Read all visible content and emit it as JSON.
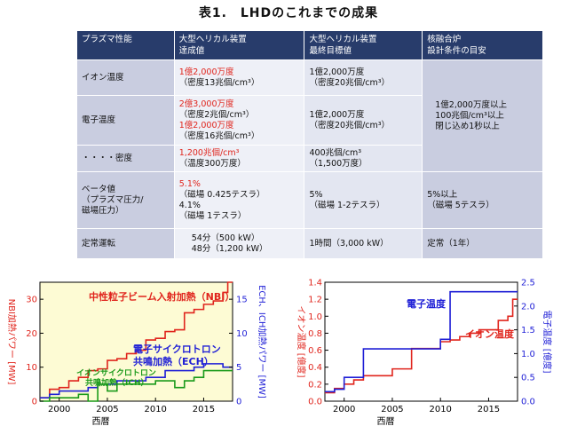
{
  "title": "表1.　LHDのこれまでの成果",
  "table": {
    "headers": [
      [
        "プラズマ性能"
      ],
      [
        "大型ヘリカル装置",
        "達成値"
      ],
      [
        "大型ヘリカル装置",
        "最終目標値"
      ],
      [
        "核融合炉",
        "設計条件の目安"
      ]
    ],
    "rows": [
      {
        "label": [
          "イオン温度"
        ],
        "achieved": [
          {
            "t": "1億2,000万度",
            "red": true
          },
          {
            "t": "（密度13兆個/cm³）",
            "red": false
          }
        ],
        "target": [
          {
            "t": "1億2,000万度"
          },
          {
            "t": "（密度20兆個/cm³）"
          }
        ]
      },
      {
        "label": [
          "電子温度"
        ],
        "achieved": [
          {
            "t": "2億3,000万度",
            "red": true
          },
          {
            "t": "（密度2兆個/cm³）",
            "red": false
          },
          {
            "t": "1億2,000万度",
            "red": true
          },
          {
            "t": "（密度16兆個/cm³）",
            "red": false
          }
        ],
        "target": [
          {
            "t": "1億2,000万度"
          },
          {
            "t": "（密度20兆個/cm³）"
          }
        ]
      },
      {
        "label": [
          "・・・・密度"
        ],
        "achieved": [
          {
            "t": "1,200兆個/cm³",
            "red": true
          },
          {
            "t": "（温度300万度）",
            "red": false
          }
        ],
        "target": [
          {
            "t": "400兆個/cm³"
          },
          {
            "t": "（1,500万度）"
          }
        ]
      },
      {
        "label": [
          "ベータ値",
          "（プラズマ圧力/",
          "磁場圧力）"
        ],
        "achieved": [
          {
            "t": "5.1%",
            "red": true
          },
          {
            "t": "（磁場 0.425テスラ）",
            "red": false
          },
          {
            "t": "4.1%",
            "red": false
          },
          {
            "t": "（磁場 1テスラ）",
            "red": false
          }
        ],
        "target": [
          {
            "t": "5%"
          },
          {
            "t": "（磁場 1-2テスラ）"
          }
        ],
        "reactor": [
          "5%以上",
          "（磁場 5テスラ）"
        ]
      },
      {
        "label": [
          "定常運転"
        ],
        "achieved": [
          {
            "t": "54分（500 kW）",
            "red": false
          },
          {
            "t": "48分（1,200 kW）",
            "red": false
          }
        ],
        "target": [
          {
            "t": "1時間（3,000 kW）"
          }
        ],
        "reactor": [
          "定常（1年）"
        ]
      }
    ],
    "reactor_merged": [
      "1億2,000万度以上",
      "100兆個/cm³以上",
      "閉じ込め1秒以上"
    ]
  },
  "colors": {
    "header_bg": "#283c6b",
    "red": "#e0251d",
    "blue": "#1f1fd6",
    "green": "#1a9a1a",
    "chart_bg": "#fdfbd4"
  },
  "chart_data": [
    {
      "type": "line",
      "xlabel": "西暦",
      "ylabel": "NBI加熱パワー [MW]",
      "ylabel_right": "ECH、ICH加熱パワー [MW]",
      "xlim": [
        1998,
        2018
      ],
      "ylim": [
        0,
        35
      ],
      "ylim_right": [
        0,
        17.5
      ],
      "x_ticks": [
        2000,
        2005,
        2010,
        2015
      ],
      "y_ticks": [
        0,
        10,
        20,
        30
      ],
      "y_ticks_right": [
        0,
        5,
        10,
        15
      ],
      "grid": false,
      "annotations": [
        {
          "text": "中性粒子ビーム入射加熱（NBI）",
          "color": "red"
        },
        {
          "text": "電子サイクロトロン",
          "color": "blue"
        },
        {
          "text": "共鳴加熱（ECH）",
          "color": "blue"
        },
        {
          "text": "イオンサイクロトロン",
          "color": "green"
        },
        {
          "text": "共鳴加熱（ICH）",
          "color": "green"
        }
      ],
      "series": [
        {
          "axis": "left",
          "color": "red",
          "step": true,
          "x": [
            1998,
            1999,
            2000,
            2001,
            2002,
            2003,
            2004,
            2005,
            2006,
            2007,
            2008,
            2009,
            2010,
            2011,
            2012,
            2013,
            2014,
            2015,
            2016,
            2017,
            2017.5,
            2018
          ],
          "values": [
            1,
            3.5,
            4,
            6,
            7,
            9,
            9.5,
            12,
            12.5,
            14,
            15,
            18,
            18.5,
            20.5,
            21,
            26,
            27,
            28.5,
            29.5,
            32,
            35,
            35
          ]
        },
        {
          "axis": "right",
          "color": "blue",
          "step": true,
          "x": [
            1998,
            1999,
            2000,
            2001,
            2002,
            2003,
            2004,
            2006,
            2007,
            2009,
            2010,
            2011,
            2013,
            2014,
            2015,
            2016,
            2017,
            2018
          ],
          "values": [
            0.5,
            1,
            1.5,
            1.5,
            1.5,
            2,
            2.5,
            3,
            3,
            3.5,
            3.5,
            4.5,
            4.5,
            5,
            5.5,
            5.5,
            5,
            5
          ]
        },
        {
          "axis": "right",
          "color": "green",
          "step": true,
          "x": [
            1998,
            1999,
            2000,
            2001,
            2002,
            2003,
            2004,
            2005,
            2006,
            2008,
            2009,
            2010,
            2012,
            2013,
            2014,
            2015,
            2016,
            2017,
            2018
          ],
          "values": [
            0,
            0.5,
            0.5,
            0.5,
            1,
            0,
            2.5,
            1.5,
            2.5,
            2.5,
            2.5,
            3,
            2,
            3,
            3.5,
            4.5,
            4.5,
            4.5,
            4.5
          ]
        }
      ]
    },
    {
      "type": "line",
      "xlabel": "西暦",
      "ylabel": "イオン温度 [億度]",
      "ylabel_right": "電子温度 [億度]",
      "xlim": [
        1998,
        2018
      ],
      "ylim": [
        0,
        1.4
      ],
      "ylim_right": [
        0,
        2.5
      ],
      "x_ticks": [
        2000,
        2005,
        2010,
        2015
      ],
      "y_ticks": [
        0,
        0.2,
        0.4,
        0.6,
        0.8,
        1.0,
        1.2,
        1.4
      ],
      "y_ticks_right": [
        0,
        0.5,
        1.0,
        1.5,
        2.0,
        2.5
      ],
      "grid": false,
      "annotations": [
        {
          "text": "電子温度",
          "color": "blue"
        },
        {
          "text": "イオン温度",
          "color": "red"
        }
      ],
      "series": [
        {
          "axis": "left",
          "color": "red",
          "step": true,
          "x": [
            1998,
            1999,
            2000,
            2001,
            2002,
            2005,
            2007,
            2009,
            2010,
            2011,
            2012,
            2013,
            2014,
            2015,
            2016,
            2017,
            2017.5,
            2018
          ],
          "values": [
            0.1,
            0.15,
            0.2,
            0.25,
            0.3,
            0.38,
            0.62,
            0.62,
            0.7,
            0.72,
            0.76,
            0.8,
            0.84,
            0.84,
            0.95,
            1.0,
            1.2,
            1.2
          ]
        },
        {
          "axis": "right",
          "color": "blue",
          "step": true,
          "x": [
            1998,
            1999,
            2000,
            2002,
            2009,
            2010,
            2011,
            2018
          ],
          "values": [
            0.2,
            0.25,
            0.5,
            1.1,
            1.1,
            1.3,
            2.3,
            2.3
          ]
        }
      ]
    }
  ]
}
